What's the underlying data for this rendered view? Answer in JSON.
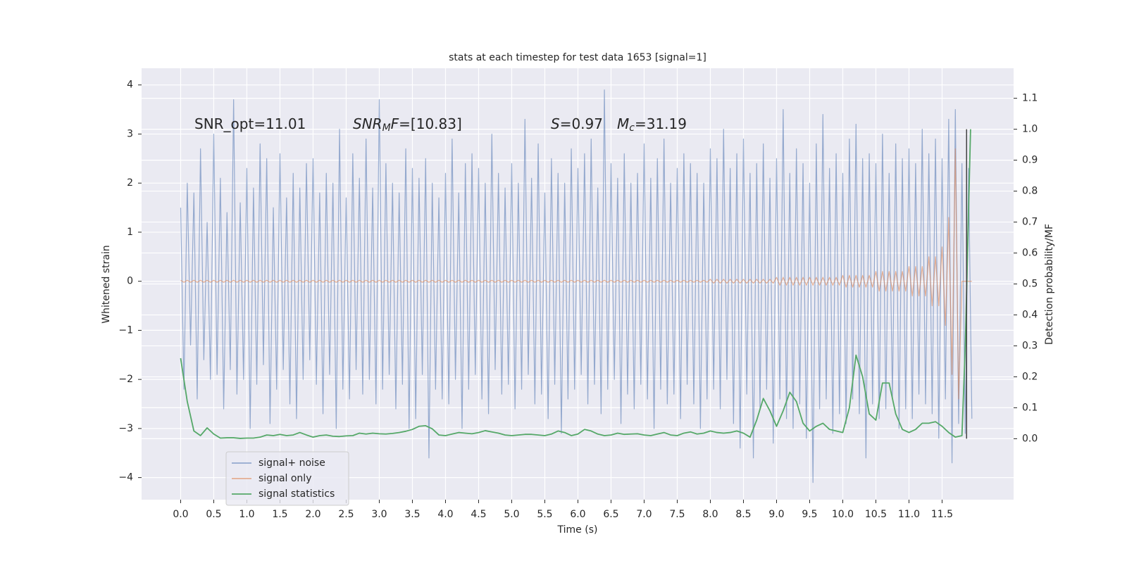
{
  "chart_data": {
    "type": "line",
    "title": "stats at each timestep for test data 1653 [signal=1]",
    "x_label": "Time (s)",
    "y_label": "Whitened strain",
    "y2_label": "Detection probability/MF",
    "xlim": [
      -0.59,
      12.58
    ],
    "ylim": [
      -4.45,
      4.34
    ],
    "y2lim": [
      -0.197,
      1.197
    ],
    "xticks": [
      {
        "value": 0,
        "label": "0.0"
      },
      0.5,
      {
        "value": 1,
        "label": "1.0"
      },
      1.5,
      {
        "value": 2,
        "label": "2.0"
      },
      2.5,
      {
        "value": 3,
        "label": "3.0"
      },
      3.5,
      {
        "value": 4,
        "label": "4.0"
      },
      4.5,
      {
        "value": 5,
        "label": "5.0"
      },
      5.5,
      {
        "value": 6,
        "label": "6.0"
      },
      6.5,
      {
        "value": 7,
        "label": "7.0"
      },
      7.5,
      {
        "value": 8,
        "label": "8.0"
      },
      8.5,
      {
        "value": 9,
        "label": "9.0"
      },
      9.5,
      {
        "value": 10,
        "label": "10.0"
      },
      10.5,
      {
        "value": 11,
        "label": "11.0"
      },
      11.5
    ],
    "yticks": [
      {
        "value": -4,
        "label": "−4"
      },
      {
        "value": -3,
        "label": "−3"
      },
      {
        "value": -2,
        "label": "−2"
      },
      {
        "value": -1,
        "label": "−1"
      },
      0,
      1,
      2,
      3,
      4
    ],
    "y2ticks": [
      {
        "value": 0,
        "label": "0.0"
      },
      0.1,
      0.2,
      0.3,
      0.4,
      0.5,
      0.6,
      0.7,
      0.8,
      0.9,
      {
        "value": 1,
        "label": "1.0"
      },
      1.1
    ],
    "grid": true,
    "legend": "lower left",
    "annotations": [
      {
        "parts": [
          {
            "text": "SNR_opt=11.01"
          }
        ]
      },
      {
        "parts": [
          {
            "text": "SNR",
            "style": "italic"
          },
          {
            "text": "M",
            "style": "sub"
          },
          {
            "text": "F",
            "style": "italic"
          },
          {
            "text": "=[10.83]"
          }
        ]
      },
      {
        "parts": [
          {
            "text": "S",
            "style": "italic"
          },
          {
            "text": "=0.97"
          }
        ]
      },
      {
        "parts": [
          {
            "text": "M",
            "style": "italic"
          },
          {
            "text": "c",
            "style": "sub"
          },
          {
            "text": "=31.19"
          }
        ]
      }
    ],
    "x": [
      0,
      0.05,
      0.1,
      0.15,
      0.2,
      0.25,
      0.3,
      0.35,
      0.4,
      0.45,
      0.5,
      0.55,
      0.6,
      0.65,
      0.7,
      0.75,
      0.8,
      0.85,
      0.9,
      0.95,
      1,
      1.05,
      1.1,
      1.15,
      1.2,
      1.25,
      1.3,
      1.35,
      1.4,
      1.45,
      1.5,
      1.55,
      1.6,
      1.65,
      1.7,
      1.75,
      1.8,
      1.85,
      1.9,
      1.95,
      2,
      2.05,
      2.1,
      2.15,
      2.2,
      2.25,
      2.3,
      2.35,
      2.4,
      2.45,
      2.5,
      2.55,
      2.6,
      2.65,
      2.7,
      2.75,
      2.8,
      2.85,
      2.9,
      2.95,
      3,
      3.05,
      3.1,
      3.15,
      3.2,
      3.25,
      3.3,
      3.35,
      3.4,
      3.45,
      3.5,
      3.55,
      3.6,
      3.65,
      3.7,
      3.75,
      3.8,
      3.85,
      3.9,
      3.95,
      4,
      4.05,
      4.1,
      4.15,
      4.2,
      4.25,
      4.3,
      4.35,
      4.4,
      4.45,
      4.5,
      4.55,
      4.6,
      4.65,
      4.7,
      4.75,
      4.8,
      4.85,
      4.9,
      4.95,
      5,
      5.05,
      5.1,
      5.15,
      5.2,
      5.25,
      5.3,
      5.35,
      5.4,
      5.45,
      5.5,
      5.55,
      5.6,
      5.65,
      5.7,
      5.75,
      5.8,
      5.85,
      5.9,
      5.95,
      6,
      6.05,
      6.1,
      6.15,
      6.2,
      6.25,
      6.3,
      6.35,
      6.4,
      6.45,
      6.5,
      6.55,
      6.6,
      6.65,
      6.7,
      6.75,
      6.8,
      6.85,
      6.9,
      6.95,
      7,
      7.05,
      7.1,
      7.15,
      7.2,
      7.25,
      7.3,
      7.35,
      7.4,
      7.45,
      7.5,
      7.55,
      7.6,
      7.65,
      7.7,
      7.75,
      7.8,
      7.85,
      7.9,
      7.95,
      8,
      8.05,
      8.1,
      8.15,
      8.2,
      8.25,
      8.3,
      8.35,
      8.4,
      8.45,
      8.5,
      8.55,
      8.6,
      8.65,
      8.7,
      8.75,
      8.8,
      8.85,
      8.9,
      8.95,
      9,
      9.05,
      9.1,
      9.15,
      9.2,
      9.25,
      9.3,
      9.35,
      9.4,
      9.45,
      9.5,
      9.55,
      9.6,
      9.65,
      9.7,
      9.75,
      9.8,
      9.85,
      9.9,
      9.95,
      10,
      10.05,
      10.1,
      10.15,
      10.2,
      10.25,
      10.3,
      10.35,
      10.4,
      10.45,
      10.5,
      10.55,
      10.6,
      10.65,
      10.7,
      10.75,
      10.8,
      10.85,
      10.9,
      10.95,
      11,
      11.05,
      11.1,
      11.15,
      11.2,
      11.25,
      11.3,
      11.35,
      11.4,
      11.45,
      11.5,
      11.55,
      11.6,
      11.65,
      11.7,
      11.75,
      11.8,
      11.85,
      11.9,
      11.95
    ],
    "series": [
      {
        "name": "signal+ noise",
        "color": "#4C72B0",
        "values": [
          1.5,
          -2.2,
          2.0,
          -1.3,
          1.8,
          -2.4,
          2.7,
          -1.6,
          1.2,
          -2.0,
          3.0,
          -1.9,
          2.1,
          -2.6,
          1.4,
          -1.8,
          3.7,
          -2.3,
          1.6,
          -2.0,
          2.3,
          -3.0,
          1.9,
          -2.1,
          2.8,
          -1.7,
          2.5,
          -2.9,
          1.5,
          -2.2,
          2.6,
          -1.8,
          1.7,
          -2.5,
          2.2,
          -2.8,
          1.9,
          -2.0,
          2.4,
          -1.6,
          2.5,
          -2.1,
          1.8,
          -2.7,
          2.2,
          -1.9,
          2.0,
          -3.0,
          3.1,
          -2.2,
          1.7,
          -2.4,
          2.6,
          -1.8,
          2.1,
          -2.3,
          2.9,
          -2.0,
          1.9,
          -2.5,
          3.7,
          -2.2,
          2.4,
          -1.9,
          2.0,
          -2.6,
          1.8,
          -2.1,
          2.7,
          -3.0,
          2.3,
          -2.8,
          2.1,
          -1.9,
          2.5,
          -3.6,
          2.0,
          -2.2,
          1.7,
          -2.4,
          2.2,
          -2.5,
          2.9,
          -2.0,
          1.8,
          -3.0,
          2.4,
          -2.2,
          2.6,
          -1.9,
          2.3,
          -2.4,
          2.0,
          -2.7,
          3.0,
          -1.8,
          2.2,
          -2.3,
          1.9,
          -2.1,
          2.4,
          -2.6,
          2.0,
          -2.2,
          3.3,
          -1.9,
          2.1,
          -2.5,
          2.8,
          -2.3,
          1.8,
          -2.8,
          2.5,
          -2.1,
          2.2,
          -3.1,
          2.0,
          -2.4,
          2.7,
          -2.2,
          2.3,
          -1.9,
          2.6,
          -2.5,
          2.9,
          -2.1,
          1.9,
          -2.7,
          3.9,
          -2.2,
          2.4,
          -2.0,
          2.1,
          -2.9,
          2.6,
          -2.3,
          2.0,
          -2.6,
          2.2,
          -2.1,
          2.8,
          -2.4,
          2.1,
          -3.0,
          2.5,
          -2.2,
          2.9,
          -2.5,
          2.0,
          -2.3,
          2.3,
          -2.8,
          2.6,
          -2.1,
          2.4,
          -2.5,
          2.2,
          -3.0,
          2.0,
          -2.4,
          2.7,
          -2.2,
          2.5,
          -2.6,
          3.1,
          -2.0,
          2.3,
          -2.9,
          2.6,
          -3.4,
          2.9,
          -2.3,
          2.2,
          -3.6,
          2.4,
          -2.6,
          2.8,
          -2.2,
          2.1,
          -3.3,
          2.5,
          -2.4,
          3.5,
          -2.8,
          2.2,
          -3.0,
          2.7,
          -2.5,
          2.4,
          -3.2,
          2.0,
          -4.1,
          2.8,
          -2.6,
          3.4,
          -2.4,
          2.3,
          -3.1,
          2.6,
          -2.7,
          2.2,
          -2.9,
          2.9,
          -2.4,
          3.2,
          -2.7,
          2.5,
          -3.6,
          2.6,
          -2.5,
          2.4,
          -2.8,
          3.0,
          -2.6,
          2.2,
          -2.4,
          2.8,
          -3.0,
          2.5,
          -2.6,
          2.7,
          -2.8,
          2.4,
          -2.3,
          3.1,
          -2.5,
          2.6,
          -2.7,
          2.9,
          -3.2,
          2.5,
          -2.4,
          3.3,
          -3.7,
          3.5,
          -2.9,
          2.4,
          -3.1,
          2.3,
          -2.8
        ]
      },
      {
        "name": "signal only",
        "color": "#DD8452",
        "values": [
          0.02,
          -0.02,
          0.02,
          -0.02,
          0.02,
          -0.02,
          0.02,
          -0.02,
          0.02,
          -0.02,
          0.02,
          -0.02,
          0.02,
          -0.02,
          0.02,
          -0.02,
          0.02,
          -0.02,
          0.02,
          -0.02,
          0.02,
          -0.02,
          0.02,
          -0.02,
          0.02,
          -0.02,
          0.02,
          -0.02,
          0.02,
          -0.02,
          0.02,
          -0.02,
          0.02,
          -0.02,
          0.02,
          -0.02,
          0.02,
          -0.02,
          0.02,
          -0.02,
          0.02,
          -0.02,
          0.02,
          -0.02,
          0.02,
          -0.02,
          0.02,
          -0.02,
          0.02,
          -0.02,
          0.02,
          -0.02,
          0.02,
          -0.02,
          0.02,
          -0.02,
          0.02,
          -0.02,
          0.02,
          -0.02,
          0.02,
          -0.02,
          0.02,
          -0.02,
          0.02,
          -0.02,
          0.02,
          -0.02,
          0.02,
          -0.02,
          0.02,
          -0.02,
          0.02,
          -0.02,
          0.02,
          -0.02,
          0.02,
          -0.02,
          0.02,
          -0.02,
          0.02,
          -0.02,
          0.02,
          -0.02,
          0.02,
          -0.02,
          0.02,
          -0.02,
          0.02,
          -0.02,
          0.02,
          -0.02,
          0.02,
          -0.02,
          0.02,
          -0.02,
          0.02,
          -0.02,
          0.02,
          -0.02,
          0.02,
          -0.02,
          0.02,
          -0.02,
          0.02,
          -0.02,
          0.02,
          -0.02,
          0.02,
          -0.02,
          0.02,
          -0.02,
          0.02,
          -0.02,
          0.02,
          -0.02,
          0.02,
          -0.02,
          0.02,
          -0.02,
          0.02,
          -0.02,
          0.02,
          -0.02,
          0.02,
          -0.02,
          0.02,
          -0.02,
          0.02,
          -0.02,
          0.02,
          -0.02,
          0.02,
          -0.02,
          0.02,
          -0.02,
          0.02,
          -0.02,
          0.02,
          -0.02,
          0.02,
          -0.02,
          0.02,
          -0.02,
          0.02,
          -0.02,
          0.02,
          -0.02,
          0.02,
          -0.02,
          0.02,
          -0.02,
          0.02,
          -0.02,
          0.02,
          -0.02,
          0.02,
          -0.02,
          0.02,
          -0.02,
          0.04,
          -0.04,
          0.04,
          -0.04,
          0.04,
          -0.04,
          0.04,
          -0.04,
          0.04,
          -0.04,
          0.04,
          -0.04,
          0.04,
          -0.04,
          0.04,
          -0.04,
          0.04,
          -0.04,
          0.04,
          -0.04,
          0.08,
          -0.08,
          0.08,
          -0.08,
          0.08,
          -0.08,
          0.08,
          -0.08,
          0.08,
          -0.08,
          0.08,
          -0.08,
          0.08,
          -0.08,
          0.08,
          -0.08,
          0.08,
          -0.08,
          0.08,
          -0.08,
          0.12,
          -0.12,
          0.12,
          -0.12,
          0.12,
          -0.12,
          0.12,
          -0.12,
          0.12,
          -0.12,
          0.2,
          -0.2,
          0.2,
          -0.2,
          0.2,
          -0.2,
          0.2,
          -0.2,
          0.2,
          -0.2,
          0.3,
          -0.3,
          0.3,
          -0.3,
          0.3,
          -0.3,
          0.5,
          -0.5,
          0.5,
          -0.5,
          0.7,
          -0.9,
          1.3,
          -1.9,
          2.7,
          -2.4,
          0,
          0,
          0,
          0
        ]
      },
      {
        "name": "signal statistics",
        "color": "#55A868",
        "axis": "y2",
        "x": [
          0,
          0.1,
          0.2,
          0.3,
          0.4,
          0.5,
          0.6,
          0.7,
          0.8,
          0.9,
          1,
          1.1,
          1.2,
          1.3,
          1.4,
          1.5,
          1.6,
          1.7,
          1.8,
          1.9,
          2,
          2.1,
          2.2,
          2.3,
          2.4,
          2.5,
          2.6,
          2.7,
          2.8,
          2.9,
          3,
          3.1,
          3.2,
          3.3,
          3.4,
          3.5,
          3.6,
          3.7,
          3.8,
          3.9,
          4,
          4.1,
          4.2,
          4.3,
          4.4,
          4.5,
          4.6,
          4.7,
          4.8,
          4.9,
          5,
          5.1,
          5.2,
          5.3,
          5.4,
          5.5,
          5.6,
          5.7,
          5.8,
          5.9,
          6,
          6.1,
          6.2,
          6.3,
          6.4,
          6.5,
          6.6,
          6.7,
          6.8,
          6.9,
          7,
          7.1,
          7.2,
          7.3,
          7.4,
          7.5,
          7.6,
          7.7,
          7.8,
          7.9,
          8,
          8.1,
          8.2,
          8.3,
          8.4,
          8.5,
          8.6,
          8.7,
          8.8,
          8.9,
          9,
          9.1,
          9.2,
          9.3,
          9.4,
          9.5,
          9.6,
          9.7,
          9.8,
          9.9,
          10,
          10.1,
          10.2,
          10.3,
          10.4,
          10.5,
          10.6,
          10.7,
          10.8,
          10.9,
          11,
          11.1,
          11.2,
          11.3,
          11.4,
          11.5,
          11.6,
          11.7,
          11.8,
          11.85,
          11.93
        ],
        "values": [
          0.26,
          0.12,
          0.025,
          0.01,
          0.035,
          0.015,
          0.002,
          0.003,
          0.003,
          0.001,
          0.002,
          0.002,
          0.005,
          0.012,
          0.01,
          0.014,
          0.01,
          0.012,
          0.02,
          0.012,
          0.005,
          0.01,
          0.012,
          0.008,
          0.007,
          0.009,
          0.01,
          0.018,
          0.015,
          0.018,
          0.016,
          0.015,
          0.017,
          0.02,
          0.024,
          0.03,
          0.04,
          0.042,
          0.032,
          0.012,
          0.01,
          0.015,
          0.02,
          0.018,
          0.016,
          0.02,
          0.026,
          0.022,
          0.018,
          0.012,
          0.01,
          0.012,
          0.014,
          0.014,
          0.012,
          0.01,
          0.015,
          0.025,
          0.02,
          0.01,
          0.015,
          0.03,
          0.025,
          0.015,
          0.01,
          0.012,
          0.018,
          0.014,
          0.015,
          0.016,
          0.012,
          0.01,
          0.015,
          0.02,
          0.012,
          0.01,
          0.018,
          0.022,
          0.015,
          0.018,
          0.025,
          0.02,
          0.018,
          0.02,
          0.025,
          0.018,
          0.005,
          0.06,
          0.13,
          0.09,
          0.04,
          0.09,
          0.15,
          0.12,
          0.05,
          0.025,
          0.04,
          0.05,
          0.03,
          0.025,
          0.02,
          0.1,
          0.27,
          0.2,
          0.08,
          0.06,
          0.18,
          0.18,
          0.08,
          0.03,
          0.02,
          0.03,
          0.05,
          0.05,
          0.055,
          0.04,
          0.02,
          0.005,
          0.01,
          0.3,
          1.0
        ]
      }
    ],
    "vlines": [
      {
        "x": 11.87,
        "y2": [
          0,
          1
        ],
        "color": "#444444"
      }
    ]
  }
}
